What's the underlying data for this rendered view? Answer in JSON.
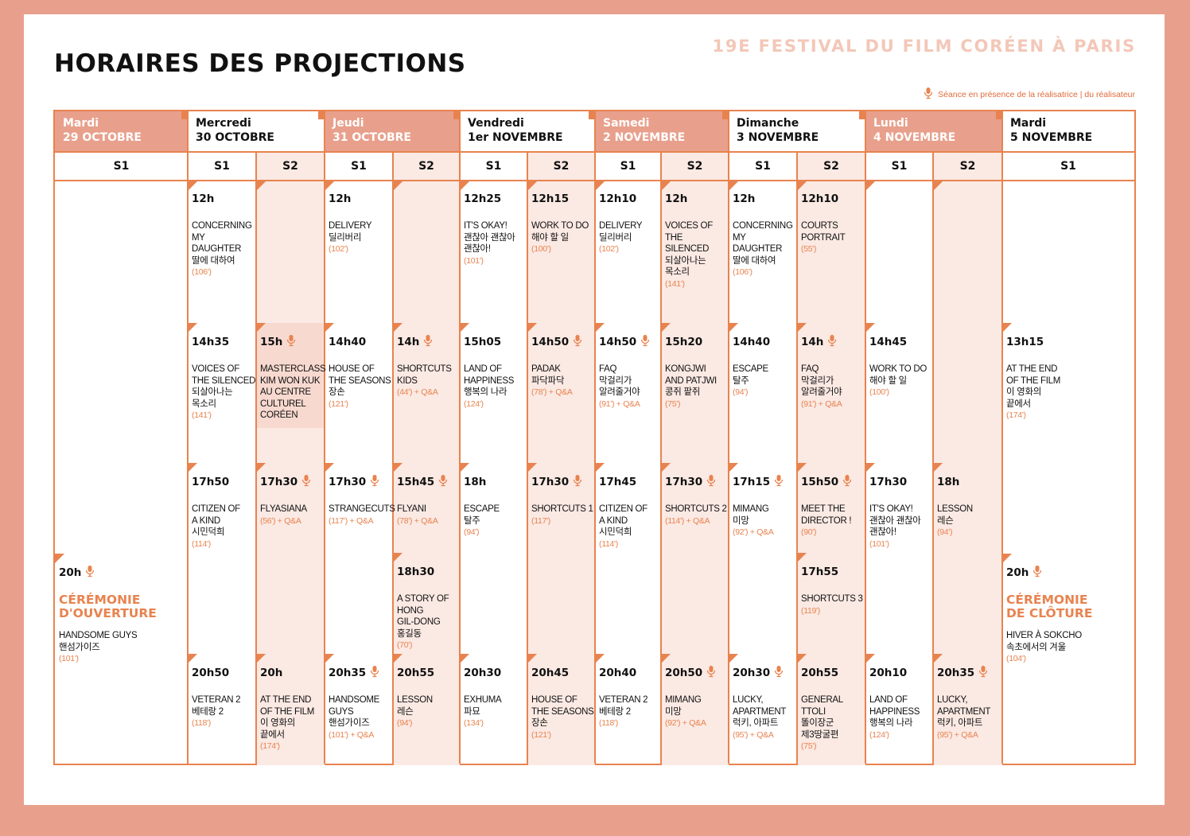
{
  "header": {
    "title": "HORAIRES DES PROJECTIONS",
    "festival": "19E FESTIVAL DU FILM CORÉEN À PARIS",
    "legend": "Séance en présence de la réalisatrice | du réalisateur"
  },
  "colors": {
    "accent": "#e8834f",
    "shade": "#e8a08c",
    "light": "#fbe9e3"
  },
  "days": [
    {
      "name": "Mardi",
      "date": "29 OCTOBRE"
    },
    {
      "name": "Mercredi",
      "date": "30 OCTOBRE"
    },
    {
      "name": "Jeudi",
      "date": "31 OCTOBRE"
    },
    {
      "name": "Vendredi",
      "date": "1er NOVEMBRE"
    },
    {
      "name": "Samedi",
      "date": "2 NOVEMBRE"
    },
    {
      "name": "Dimanche",
      "date": "3 NOVEMBRE"
    },
    {
      "name": "Lundi",
      "date": "4 NOVEMBRE"
    },
    {
      "name": "Mardi",
      "date": "5 NOVEMBRE"
    }
  ],
  "screens": [
    "S1",
    "S1",
    "S2",
    "S1",
    "S2",
    "S1",
    "S2",
    "S1",
    "S2",
    "S1",
    "S2",
    "S1",
    "S2",
    "S1"
  ],
  "slots": [
    {
      "col": 1,
      "row": "r1",
      "time": "12h",
      "title": [
        "CONCERNING",
        "MY DAUGHTER",
        "딸에 대하여"
      ],
      "dur": "(106')"
    },
    {
      "col": 1,
      "row": "r2",
      "time": "14h35",
      "title": [
        "VOICES OF",
        "THE SILENCED",
        "되살아나는",
        "목소리"
      ],
      "dur": "(141')"
    },
    {
      "col": 1,
      "row": "r3",
      "time": "17h50",
      "title": [
        "CITIZEN OF",
        "A KIND",
        "시민덕희"
      ],
      "dur": "(114')"
    },
    {
      "col": 1,
      "row": "r5",
      "time": "20h50",
      "title": [
        "VETERAN 2",
        "베테랑 2"
      ],
      "dur": "(118')"
    },
    {
      "col": 2,
      "row": "r2",
      "time": "15h",
      "mic": true,
      "title": [
        "MASTERCLASS",
        "KIM WON KUK",
        "AU CENTRE",
        "CULTUREL",
        "CORÉEN"
      ],
      "dur": ""
    },
    {
      "col": 2,
      "row": "r3",
      "time": "17h30",
      "mic": true,
      "title": [
        "FLYASIANA"
      ],
      "dur": "(56') + Q&A"
    },
    {
      "col": 2,
      "row": "r5",
      "time": "20h",
      "title": [
        "AT THE END",
        "OF THE FILM",
        "이 영화의",
        "끝에서"
      ],
      "dur": "(174')"
    },
    {
      "col": 3,
      "row": "r1",
      "time": "12h",
      "title": [
        "DELIVERY",
        "딜리버리"
      ],
      "dur": "(102')"
    },
    {
      "col": 3,
      "row": "r2",
      "time": "14h40",
      "title": [
        "HOUSE OF",
        "THE SEASONS",
        "장손"
      ],
      "dur": "(121')"
    },
    {
      "col": 3,
      "row": "r3",
      "time": "17h30",
      "mic": true,
      "title": [
        "STRANGECUTS"
      ],
      "dur": "(117') + Q&A"
    },
    {
      "col": 3,
      "row": "r5",
      "time": "20h35",
      "mic": true,
      "title": [
        "HANDSOME",
        "GUYS",
        "핸섬가이즈"
      ],
      "dur": "(101') + Q&A"
    },
    {
      "col": 4,
      "row": "r2",
      "time": "14h",
      "mic": true,
      "title": [
        "SHORTCUTS",
        "KIDS"
      ],
      "dur": "(44') + Q&A"
    },
    {
      "col": 4,
      "row": "r3",
      "time": "15h45",
      "mic": true,
      "title": [
        "FLYANI"
      ],
      "dur": "(78') + Q&A"
    },
    {
      "col": 4,
      "row": "r4",
      "time": "18h30",
      "title": [
        "A STORY OF",
        "HONG",
        "GIL-DONG",
        "홍길동"
      ],
      "dur": "(70')"
    },
    {
      "col": 4,
      "row": "r5",
      "time": "20h55",
      "title": [
        "LESSON",
        "레슨"
      ],
      "dur": "(94')"
    },
    {
      "col": 5,
      "row": "r1",
      "time": "12h25",
      "title": [
        "IT'S OKAY!",
        "괜찮아 괜찮아",
        "괜찮아!"
      ],
      "dur": "(101')"
    },
    {
      "col": 5,
      "row": "r2",
      "time": "15h05",
      "title": [
        "LAND OF",
        "HAPPINESS",
        "행복의 나라"
      ],
      "dur": "(124')"
    },
    {
      "col": 5,
      "row": "r3",
      "time": "18h",
      "title": [
        "ESCAPE",
        "탈주"
      ],
      "dur": "(94')"
    },
    {
      "col": 5,
      "row": "r5",
      "time": "20h30",
      "title": [
        "EXHUMA",
        "파묘"
      ],
      "dur": "(134')"
    },
    {
      "col": 6,
      "row": "r1",
      "time": "12h15",
      "title": [
        "WORK TO DO",
        "해야 할 일"
      ],
      "dur": "(100')"
    },
    {
      "col": 6,
      "row": "r2",
      "time": "14h50",
      "mic": true,
      "title": [
        "PADAK",
        "파닥파닥"
      ],
      "dur": "(78') + Q&A"
    },
    {
      "col": 6,
      "row": "r3",
      "time": "17h30",
      "mic": true,
      "title": [
        "SHORTCUTS 1"
      ],
      "dur": "(117')"
    },
    {
      "col": 6,
      "row": "r5",
      "time": "20h45",
      "title": [
        "HOUSE OF",
        "THE SEASONS",
        "장손"
      ],
      "dur": "(121')"
    },
    {
      "col": 7,
      "row": "r1",
      "time": "12h10",
      "title": [
        "DELIVERY",
        "딜리버리"
      ],
      "dur": "(102')"
    },
    {
      "col": 7,
      "row": "r2",
      "time": "14h50",
      "mic": true,
      "title": [
        "FAQ",
        "막걸리가",
        "알려줄거야"
      ],
      "dur": "(91') + Q&A"
    },
    {
      "col": 7,
      "row": "r3",
      "time": "17h45",
      "title": [
        "CITIZEN OF",
        "A KIND",
        "시민덕희"
      ],
      "dur": "(114')"
    },
    {
      "col": 7,
      "row": "r5",
      "time": "20h40",
      "title": [
        "VETERAN 2",
        "베테랑 2"
      ],
      "dur": "(118')"
    },
    {
      "col": 8,
      "row": "r1",
      "time": "12h",
      "title": [
        "VOICES OF",
        "THE SILENCED",
        "되살아나는",
        "목소리"
      ],
      "dur": "(141')"
    },
    {
      "col": 8,
      "row": "r2",
      "time": "15h20",
      "title": [
        "KONGJWI",
        "AND PATJWI",
        "콩쥐 팥쥐"
      ],
      "dur": "(75')"
    },
    {
      "col": 8,
      "row": "r3",
      "time": "17h30",
      "mic": true,
      "title": [
        "SHORTCUTS 2"
      ],
      "dur": "(114') + Q&A"
    },
    {
      "col": 8,
      "row": "r5",
      "time": "20h50",
      "mic": true,
      "title": [
        "MIMANG",
        "미망"
      ],
      "dur": "(92') + Q&A"
    },
    {
      "col": 9,
      "row": "r1",
      "time": "12h",
      "title": [
        "CONCERNING",
        "MY DAUGHTER",
        "딸에 대하여"
      ],
      "dur": "(106')"
    },
    {
      "col": 9,
      "row": "r2",
      "time": "14h40",
      "title": [
        "ESCAPE",
        "탈주"
      ],
      "dur": "(94')"
    },
    {
      "col": 9,
      "row": "r3",
      "time": "17h15",
      "mic": true,
      "title": [
        "MIMANG",
        "미망"
      ],
      "dur": "(92') + Q&A"
    },
    {
      "col": 9,
      "row": "r5",
      "time": "20h30",
      "mic": true,
      "title": [
        "LUCKY,",
        "APARTMENT",
        "럭키, 아파트"
      ],
      "dur": "(95') + Q&A"
    },
    {
      "col": 10,
      "row": "r1",
      "time": "12h10",
      "title": [
        "COURTS",
        "PORTRAIT"
      ],
      "dur": "(55')"
    },
    {
      "col": 10,
      "row": "r2",
      "time": "14h",
      "mic": true,
      "title": [
        "FAQ",
        "막걸리가",
        "알려줄거야"
      ],
      "dur": "(91') + Q&A"
    },
    {
      "col": 10,
      "row": "r3",
      "time": "15h50",
      "mic": true,
      "title": [
        "MEET THE",
        "DIRECTOR !"
      ],
      "dur": "(90')"
    },
    {
      "col": 10,
      "row": "r4",
      "time": "17h55",
      "title": [
        "SHORTCUTS 3"
      ],
      "dur": "(119')"
    },
    {
      "col": 10,
      "row": "r5",
      "time": "20h55",
      "title": [
        "GENERAL TTOLI",
        "똘이장군",
        "제3땅굴편"
      ],
      "dur": "(75')"
    },
    {
      "col": 11,
      "row": "r2",
      "time": "14h45",
      "title": [
        "WORK TO DO",
        "해야 할 일"
      ],
      "dur": "(100')"
    },
    {
      "col": 11,
      "row": "r3",
      "time": "17h30",
      "title": [
        "IT'S OKAY!",
        "괜찮아 괜찮아",
        "괜찮아!"
      ],
      "dur": "(101')"
    },
    {
      "col": 11,
      "row": "r5",
      "time": "20h10",
      "title": [
        "LAND OF",
        "HAPPINESS",
        "행복의 나라"
      ],
      "dur": "(124')"
    },
    {
      "col": 12,
      "row": "r3",
      "time": "18h",
      "title": [
        "LESSON",
        "레슨"
      ],
      "dur": "(94')"
    },
    {
      "col": 12,
      "row": "r5",
      "time": "20h35",
      "mic": true,
      "title": [
        "LUCKY,",
        "APARTMENT",
        "럭키, 아파트"
      ],
      "dur": "(95') + Q&A"
    },
    {
      "col": 13,
      "row": "r2",
      "time": "13h15",
      "title": [
        "AT THE END",
        "OF THE FILM",
        "이 영화의",
        "끝에서"
      ],
      "dur": "(174')"
    }
  ],
  "ceremonies": [
    {
      "col": 0,
      "time": "20h",
      "label": [
        "CÉRÉMONIE",
        "D'OUVERTURE"
      ],
      "film": [
        "HANDSOME GUYS",
        "핸섬가이즈"
      ],
      "dur": "(101')"
    },
    {
      "col": 13,
      "time": "20h",
      "label": [
        "CÉRÉMONIE",
        "DE CLÔTURE"
      ],
      "film": [
        "HIVER À SOKCHO",
        "속초에서의 겨울"
      ],
      "dur": "(104')"
    }
  ]
}
